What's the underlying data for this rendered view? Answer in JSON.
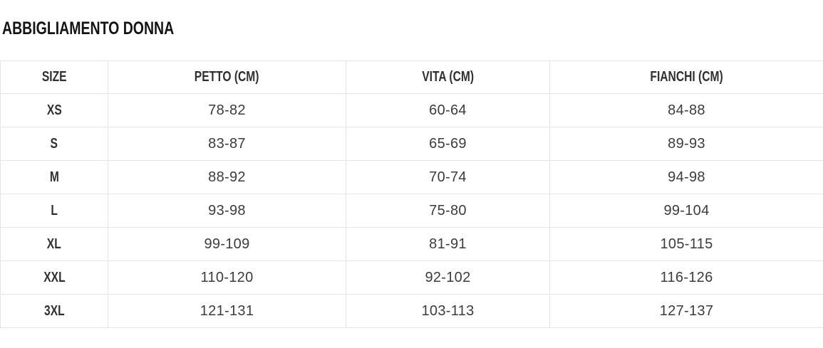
{
  "title": "ABBIGLIAMENTO DONNA",
  "table": {
    "headers": [
      "SIZE",
      "PETTO (CM)",
      "VITA (CM)",
      "FIANCHI (CM)"
    ],
    "rows": [
      [
        "XS",
        "78-82",
        "60-64",
        "84-88"
      ],
      [
        "S",
        "83-87",
        "65-69",
        "89-93"
      ],
      [
        "M",
        "88-92",
        "70-74",
        "94-98"
      ],
      [
        "L",
        "93-98",
        "75-80",
        "99-104"
      ],
      [
        "XL",
        "99-109",
        "81-91",
        "105-115"
      ],
      [
        "XXL",
        "110-120",
        "92-102",
        "116-126"
      ],
      [
        "3XL",
        "121-131",
        "103-113",
        "127-137"
      ]
    ]
  },
  "chart_data": {
    "type": "table",
    "title": "ABBIGLIAMENTO DONNA",
    "columns": [
      "SIZE",
      "PETTO (CM)",
      "VITA (CM)",
      "FIANCHI (CM)"
    ],
    "rows": [
      [
        "XS",
        "78-82",
        "60-64",
        "84-88"
      ],
      [
        "S",
        "83-87",
        "65-69",
        "89-93"
      ],
      [
        "M",
        "88-92",
        "70-74",
        "94-98"
      ],
      [
        "L",
        "93-98",
        "75-80",
        "99-104"
      ],
      [
        "XL",
        "99-109",
        "81-91",
        "105-115"
      ],
      [
        "XXL",
        "110-120",
        "92-102",
        "116-126"
      ],
      [
        "3XL",
        "121-131",
        "103-113",
        "127-137"
      ]
    ]
  },
  "colors": {
    "title_text": "#141414",
    "header_text": "#2e3033",
    "cell_text": "#3a3c3e",
    "border": "#e5e5e5",
    "background": "#ffffff"
  }
}
